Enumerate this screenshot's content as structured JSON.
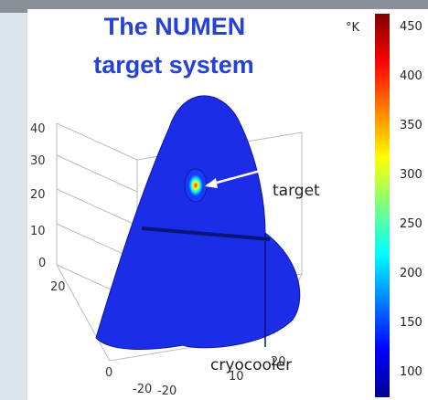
{
  "title": {
    "line1": "The NUMEN",
    "line2": "target system"
  },
  "colorbar": {
    "unit": "°K",
    "ticks": [
      "450",
      "400",
      "350",
      "300",
      "250",
      "200",
      "150",
      "100"
    ]
  },
  "axes": {
    "z": [
      "40",
      "30",
      "20",
      "10",
      "0"
    ],
    "x": [
      "20",
      "0",
      "-20"
    ],
    "y": [
      "20",
      "10",
      "-20"
    ]
  },
  "annotations": {
    "target": "target",
    "cryocooler": "cryocooler"
  }
}
